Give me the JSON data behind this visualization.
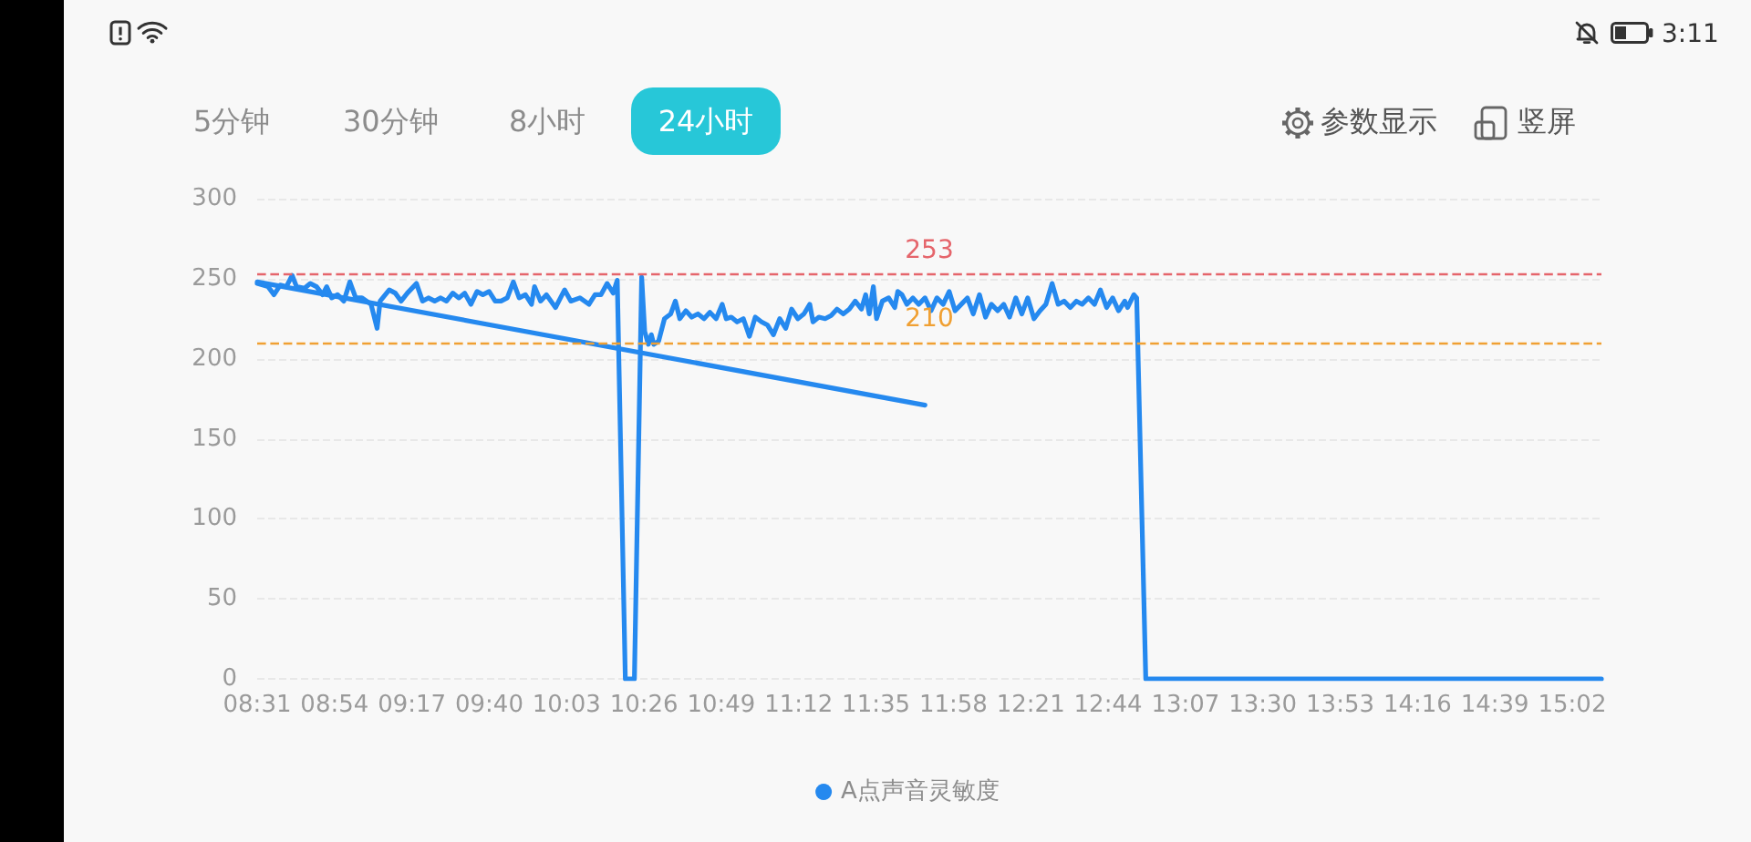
{
  "chart_data": {
    "type": "line",
    "series": [
      {
        "name": "A点声音灵敏度",
        "color": "#2589ef",
        "x": [
          8.517,
          8.571,
          8.6,
          8.631,
          8.661,
          8.69,
          8.712,
          8.751,
          8.78,
          8.811,
          8.841,
          8.861,
          8.886,
          8.915,
          8.946,
          8.976,
          9.005,
          9.036,
          9.081,
          9.111,
          9.126,
          9.171,
          9.201,
          9.23,
          9.261,
          9.306,
          9.336,
          9.365,
          9.396,
          9.426,
          9.455,
          9.486,
          9.516,
          9.545,
          9.576,
          9.606,
          9.635,
          9.666,
          9.696,
          9.725,
          9.756,
          9.786,
          9.815,
          9.846,
          9.876,
          9.891,
          9.921,
          9.95,
          9.995,
          10.04,
          10.071,
          10.116,
          10.161,
          10.191,
          10.22,
          10.251,
          10.281,
          10.301,
          10.341,
          10.386,
          10.422,
          10.437,
          10.455,
          10.47,
          10.482,
          10.506,
          10.535,
          10.566,
          10.589,
          10.611,
          10.641,
          10.67,
          10.701,
          10.731,
          10.76,
          10.791,
          10.821,
          10.841,
          10.866,
          10.895,
          10.926,
          10.956,
          10.985,
          11.016,
          11.046,
          11.075,
          11.106,
          11.136,
          11.165,
          11.196,
          11.226,
          11.255,
          11.271,
          11.3,
          11.331,
          11.361,
          11.39,
          11.421,
          11.451,
          11.48,
          11.511,
          11.532,
          11.55,
          11.57,
          11.586,
          11.615,
          11.646,
          11.676,
          11.691,
          11.712,
          11.736,
          11.766,
          11.795,
          11.826,
          11.856,
          11.885,
          11.916,
          11.946,
          11.975,
          12.006,
          12.036,
          12.065,
          12.096,
          12.126,
          12.155,
          12.186,
          12.216,
          12.245,
          12.276,
          12.306,
          12.335,
          12.366,
          12.396,
          12.425,
          12.456,
          12.486,
          12.515,
          12.546,
          12.576,
          12.605,
          12.636,
          12.666,
          12.695,
          12.726,
          12.756,
          12.785,
          12.816,
          12.83,
          12.861,
          12.875,
          12.92,
          15.178
        ],
        "values": [
          247,
          245,
          240,
          246,
          245,
          252,
          245,
          244,
          247,
          245,
          240,
          245,
          238,
          240,
          236,
          248,
          238,
          238,
          234,
          219,
          236,
          243,
          241,
          236,
          241,
          247,
          236,
          238,
          236,
          238,
          236,
          241,
          238,
          241,
          234,
          242,
          240,
          242,
          236,
          236,
          238,
          248,
          238,
          240,
          234,
          245,
          236,
          240,
          232,
          243,
          236,
          238,
          234,
          240,
          240,
          247,
          241,
          249,
          0,
          0,
          251,
          217,
          209,
          215,
          209,
          211,
          225,
          228,
          236,
          225,
          230,
          226,
          228,
          225,
          229,
          225,
          234,
          225,
          226,
          223,
          225,
          214,
          226,
          223,
          221,
          215,
          225,
          219,
          231,
          225,
          228,
          234,
          223,
          226,
          225,
          227,
          231,
          228,
          231,
          236,
          231,
          240,
          228,
          245,
          225,
          236,
          238,
          232,
          242,
          240,
          234,
          238,
          234,
          238,
          230,
          238,
          234,
          242,
          230,
          234,
          238,
          228,
          240,
          226,
          234,
          230,
          234,
          226,
          238,
          228,
          238,
          225,
          230,
          234,
          247,
          234,
          236,
          232,
          236,
          234,
          238,
          234,
          243,
          232,
          238,
          230,
          236,
          232,
          240,
          238,
          0,
          0
        ]
      },
      {
        "type": "line",
        "color": "#2589ef",
        "x": [
          8.517,
          11.826
        ],
        "values": [
          248,
          171
        ]
      }
    ],
    "xlim": [
      8.5167,
      15.178
    ],
    "xticks": [
      {
        "value": 8.5167,
        "label": "08:31"
      },
      {
        "value": 8.9,
        "label": "08:54"
      },
      {
        "value": 9.2833,
        "label": "09:17"
      },
      {
        "value": 9.6667,
        "label": "09:40"
      },
      {
        "value": 10.05,
        "label": "10:03"
      },
      {
        "value": 10.4333,
        "label": "10:26"
      },
      {
        "value": 10.8167,
        "label": "10:49"
      },
      {
        "value": 11.2,
        "label": "11:12"
      },
      {
        "value": 11.5833,
        "label": "11:35"
      },
      {
        "value": 11.9667,
        "label": "11:58"
      },
      {
        "value": 12.35,
        "label": "12:21"
      },
      {
        "value": 12.7333,
        "label": "12:44"
      },
      {
        "value": 13.1167,
        "label": "13:07"
      },
      {
        "value": 13.5,
        "label": "13:30"
      },
      {
        "value": 13.8833,
        "label": "13:53"
      },
      {
        "value": 14.2667,
        "label": "14:16"
      },
      {
        "value": 14.65,
        "label": "14:39"
      },
      {
        "value": 15.0333,
        "label": "15:02"
      }
    ],
    "ylim": [
      0,
      300
    ],
    "yticks": [
      0,
      50,
      100,
      150,
      200,
      250,
      300
    ],
    "grid": "y",
    "legend": "bottom",
    "marker": "none",
    "line_style": "solid",
    "ref_lines": [
      {
        "axis": "y",
        "value": 253,
        "label": "253",
        "color": "#e5656b",
        "line_style": "dashed"
      },
      {
        "axis": "y",
        "value": 210,
        "label": "210",
        "color": "#f0a033",
        "line_style": "dashed"
      }
    ],
    "annotations": [
      "5分钟",
      "30分钟",
      "8小时",
      "24小时",
      "参数显示",
      "竖屏",
      "3:11"
    ]
  }
}
